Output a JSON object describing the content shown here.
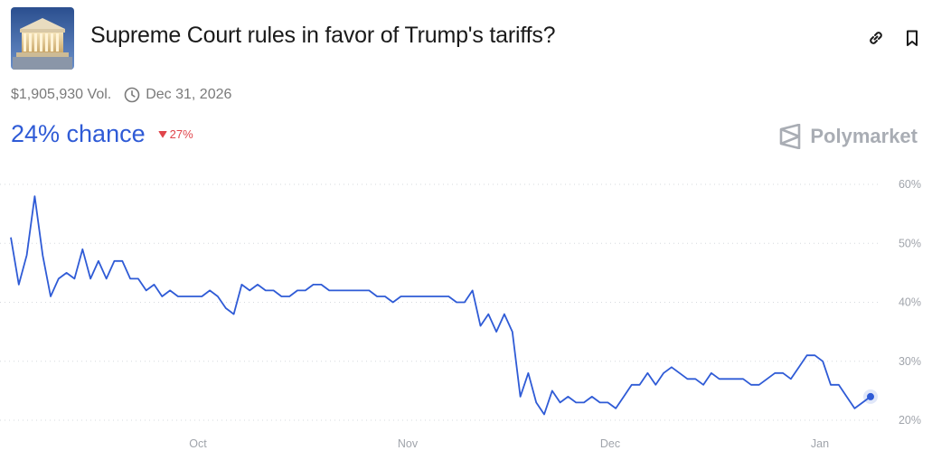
{
  "header": {
    "title": "Supreme Court rules in favor of Trump's tariffs?",
    "thumbnail_icon": "supreme-court-building-icon",
    "link_icon": "link-icon",
    "bookmark_icon": "bookmark-icon"
  },
  "meta": {
    "volume": "$1,905,930 Vol.",
    "end_date": "Dec 31, 2026",
    "clock_icon": "clock-icon"
  },
  "odds": {
    "chance": "24% chance",
    "change": "27%",
    "change_direction": "down",
    "change_color": "#e0454b"
  },
  "brand": {
    "name": "Polymarket",
    "icon": "polymarket-logo-icon",
    "color": "#a9adb4"
  },
  "chart_data": {
    "type": "line",
    "title": "",
    "xlabel": "",
    "ylabel": "",
    "x_ticks": [
      "Oct",
      "Nov",
      "Dec",
      "Jan"
    ],
    "y_ticks": [
      "60%",
      "50%",
      "40%",
      "30%",
      "20%"
    ],
    "y_tick_values": [
      60,
      50,
      40,
      30,
      20
    ],
    "ylim": [
      20,
      60
    ],
    "grid": true,
    "line_color": "#2f5bd6",
    "series": [
      {
        "values": [
          51,
          43,
          48,
          58,
          48,
          41,
          44,
          45,
          44,
          49,
          44,
          47,
          44,
          47,
          47,
          44,
          44,
          42,
          43,
          41,
          42,
          41,
          41,
          41,
          41,
          42,
          41,
          39,
          38,
          43,
          42,
          43,
          42,
          42,
          41,
          41,
          42,
          42,
          43,
          43,
          42,
          42,
          42,
          42,
          42,
          42,
          41,
          41,
          40,
          41,
          41,
          41,
          41,
          41,
          41,
          41,
          40,
          40,
          42,
          36,
          38,
          35,
          38,
          35,
          24,
          28,
          23,
          21,
          25,
          23,
          24,
          23,
          23,
          24,
          23,
          23,
          22,
          24,
          26,
          26,
          28,
          26,
          28,
          29,
          28,
          27,
          27,
          26,
          28,
          27,
          27,
          27,
          27,
          26,
          26,
          27,
          28,
          28,
          27,
          29,
          31,
          31,
          30,
          26,
          26,
          24,
          22,
          23,
          24
        ]
      }
    ],
    "last_point": 24
  }
}
